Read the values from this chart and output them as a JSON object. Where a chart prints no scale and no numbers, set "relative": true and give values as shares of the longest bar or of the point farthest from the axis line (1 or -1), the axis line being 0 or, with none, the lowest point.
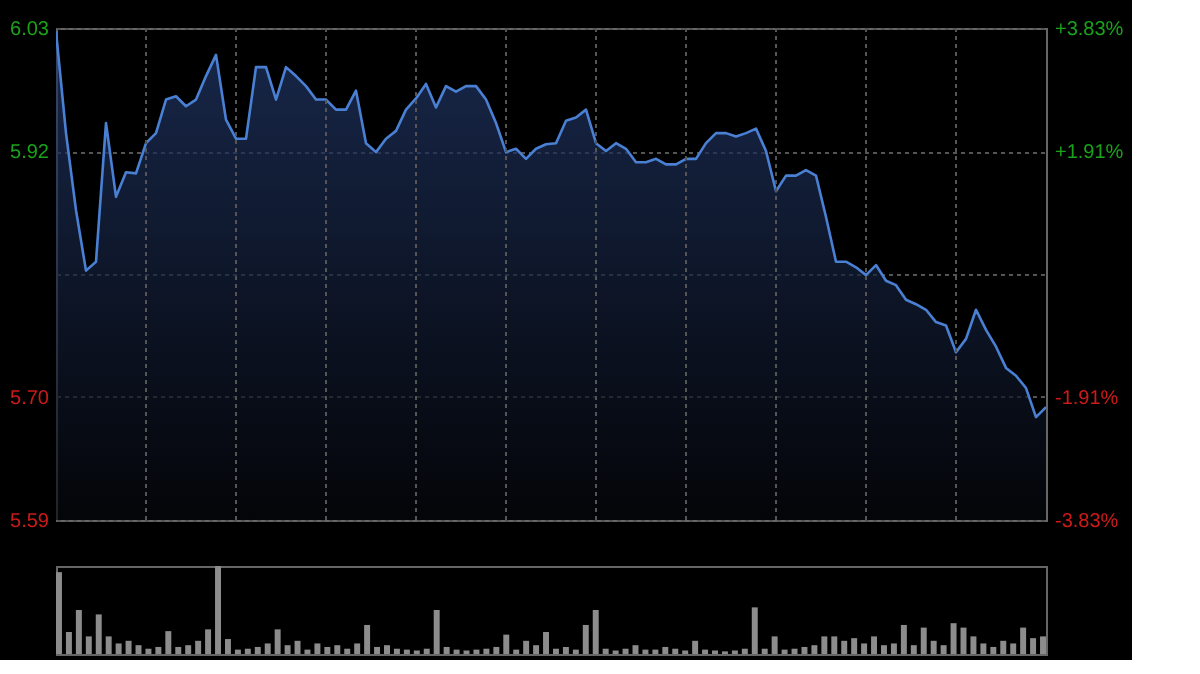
{
  "chart_data": [
    {
      "type": "area",
      "categories": [
        null,
        null,
        null,
        null,
        null,
        null,
        null,
        null,
        null,
        null,
        null,
        null,
        null,
        null,
        null,
        null,
        null,
        null,
        null,
        null,
        null,
        null,
        null,
        null,
        null,
        null,
        null,
        null,
        null,
        null,
        null,
        null,
        null,
        null,
        null,
        null,
        null,
        null,
        null,
        null,
        null,
        null,
        null,
        null,
        null,
        null,
        null,
        null,
        null,
        null,
        null,
        null,
        null,
        null,
        null,
        null,
        null,
        null,
        null,
        null,
        null,
        null,
        null,
        null,
        null,
        null,
        null,
        null,
        null,
        null,
        null,
        null,
        null,
        null,
        null,
        null,
        null,
        null,
        null,
        null,
        null,
        null,
        null,
        null,
        null,
        null,
        null,
        null,
        null,
        null,
        null,
        null,
        null,
        null,
        null,
        null,
        null,
        null,
        null,
        null
      ],
      "series": [
        {
          "color": "#4a80d4",
          "values": [
            6.027,
            5.936,
            5.867,
            5.813,
            5.821,
            5.945,
            5.879,
            5.901,
            5.9,
            5.927,
            5.936,
            5.966,
            5.969,
            5.96,
            5.966,
            5.987,
            6.006,
            5.948,
            5.931,
            5.931,
            5.995,
            5.995,
            5.966,
            5.995,
            5.987,
            5.978,
            5.966,
            5.966,
            5.957,
            5.957,
            5.974,
            5.927,
            5.919,
            5.931,
            5.938,
            5.957,
            5.967,
            5.98,
            5.959,
            5.978,
            5.973,
            5.978,
            5.978,
            5.966,
            5.945,
            5.919,
            5.922,
            5.913,
            5.922,
            5.926,
            5.927,
            5.947,
            5.95,
            5.957,
            5.927,
            5.92,
            5.927,
            5.922,
            5.91,
            5.91,
            5.913,
            5.908,
            5.908,
            5.913,
            5.913,
            5.927,
            5.936,
            5.936,
            5.933,
            5.936,
            5.94,
            5.92,
            5.884,
            5.898,
            5.898,
            5.903,
            5.898,
            5.861,
            5.821,
            5.821,
            5.816,
            5.809,
            5.818,
            5.804,
            5.8,
            5.787,
            5.783,
            5.778,
            5.767,
            5.764,
            5.74,
            5.752,
            5.778,
            5.76,
            5.745,
            5.726,
            5.719,
            5.708,
            5.682,
            5.691
          ]
        }
      ],
      "ylim": [
        5.59,
        6.03
      ],
      "yticks": [
        {
          "value": 5.59,
          "label": "5.59"
        },
        {
          "value": 5.7,
          "label": "5.70"
        },
        {
          "value": 5.81,
          "label": null
        },
        {
          "value": 5.92,
          "label": "5.92"
        },
        {
          "value": 6.03,
          "label": "6.03"
        }
      ],
      "y2lim": [
        -3.83,
        3.83
      ],
      "y2ticks": [
        {
          "value": -3.83,
          "label": "-3.83%"
        },
        {
          "value": -1.91,
          "label": "-1.91%"
        },
        {
          "value": 0,
          "label": null
        },
        {
          "value": 1.91,
          "label": "+1.91%"
        },
        {
          "value": 3.83,
          "label": "+3.83%"
        }
      ],
      "grid": true
    },
    {
      "type": "bar",
      "relative": true,
      "categories": [
        null,
        null,
        null,
        null,
        null,
        null,
        null,
        null,
        null,
        null,
        null,
        null,
        null,
        null,
        null,
        null,
        null,
        null,
        null,
        null,
        null,
        null,
        null,
        null,
        null,
        null,
        null,
        null,
        null,
        null,
        null,
        null,
        null,
        null,
        null,
        null,
        null,
        null,
        null,
        null,
        null,
        null,
        null,
        null,
        null,
        null,
        null,
        null,
        null,
        null,
        null,
        null,
        null,
        null,
        null,
        null,
        null,
        null,
        null,
        null,
        null,
        null,
        null,
        null,
        null,
        null,
        null,
        null,
        null,
        null,
        null,
        null,
        null,
        null,
        null,
        null,
        null,
        null,
        null,
        null,
        null,
        null,
        null,
        null,
        null,
        null,
        null,
        null,
        null,
        null,
        null,
        null,
        null,
        null,
        null,
        null,
        null,
        null,
        null,
        null
      ],
      "series": [
        {
          "color": "#8c8c8c",
          "values": [
            0.93,
            0.25,
            0.5,
            0.2,
            0.45,
            0.2,
            0.12,
            0.15,
            0.1,
            0.06,
            0.08,
            0.26,
            0.08,
            0.1,
            0.15,
            0.28,
            1.0,
            0.17,
            0.05,
            0.06,
            0.08,
            0.12,
            0.28,
            0.1,
            0.15,
            0.05,
            0.12,
            0.08,
            0.1,
            0.06,
            0.12,
            0.33,
            0.08,
            0.1,
            0.06,
            0.05,
            0.04,
            0.06,
            0.5,
            0.08,
            0.05,
            0.04,
            0.05,
            0.06,
            0.08,
            0.22,
            0.05,
            0.15,
            0.1,
            0.25,
            0.06,
            0.08,
            0.05,
            0.33,
            0.5,
            0.06,
            0.04,
            0.06,
            0.1,
            0.05,
            0.05,
            0.08,
            0.06,
            0.04,
            0.15,
            0.05,
            0.04,
            0.03,
            0.04,
            0.06,
            0.53,
            0.06,
            0.2,
            0.05,
            0.06,
            0.08,
            0.1,
            0.2,
            0.2,
            0.15,
            0.18,
            0.12,
            0.2,
            0.1,
            0.12,
            0.33,
            0.1,
            0.3,
            0.15,
            0.1,
            0.35,
            0.3,
            0.2,
            0.12,
            0.08,
            0.15,
            0.12,
            0.3,
            0.18,
            0.2
          ]
        }
      ]
    }
  ]
}
